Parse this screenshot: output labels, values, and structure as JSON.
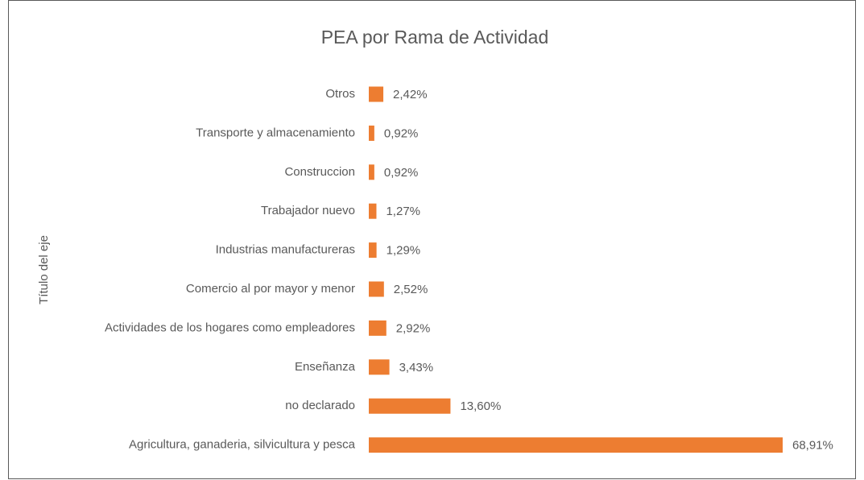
{
  "chart_data": {
    "type": "hbar",
    "title": "PEA por Rama de Actividad",
    "y_axis_label": "Título del eje",
    "categories": [
      "Otros",
      "Transporte y almacenamiento",
      "Construccion",
      "Trabajador nuevo",
      "Industrias manufactureras",
      "Comercio al por mayor y menor",
      "Actividades de los hogares como empleadores",
      "Enseñanza",
      "no declarado",
      "Agricultura, ganaderia, silvicultura y pesca"
    ],
    "values": [
      2.42,
      0.92,
      0.92,
      1.27,
      1.29,
      2.52,
      2.92,
      3.43,
      13.6,
      68.91
    ],
    "value_labels": [
      "2,42%",
      "0,92%",
      "0,92%",
      "1,27%",
      "1,29%",
      "2,52%",
      "2,92%",
      "3,43%",
      "13,60%",
      "68,91%"
    ],
    "color": "#ED7D31"
  }
}
